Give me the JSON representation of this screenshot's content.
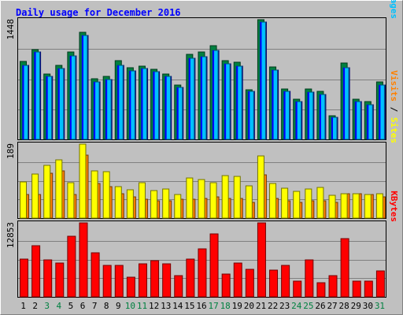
{
  "chart_data": {
    "type": "bar",
    "title": "Daily usage for December 2016",
    "categories": [
      "1",
      "2",
      "3",
      "4",
      "5",
      "6",
      "7",
      "8",
      "9",
      "10",
      "11",
      "12",
      "13",
      "14",
      "15",
      "16",
      "17",
      "18",
      "19",
      "20",
      "21",
      "22",
      "23",
      "24",
      "25",
      "26",
      "27",
      "28",
      "29",
      "30",
      "31"
    ],
    "weekend_days": [
      "3",
      "4",
      "10",
      "11",
      "17",
      "18",
      "24",
      "25",
      "31"
    ],
    "panels": [
      {
        "id": "top",
        "max_label": "1448",
        "ylim": [
          0,
          1448
        ],
        "right_labels": [
          {
            "text": "Hits",
            "color": "#008040"
          },
          {
            "text": " / ",
            "color": "#000000"
          },
          {
            "text": "Files",
            "color": "#0000ff"
          },
          {
            "text": " / ",
            "color": "#000000"
          },
          {
            "text": "Pages",
            "color": "#00c0ff"
          }
        ],
        "series": [
          {
            "name": "Hits",
            "color": "#008040",
            "values": [
              940,
              1090,
              790,
              900,
              1060,
              1300,
              730,
              760,
              950,
              870,
              890,
              850,
              790,
              660,
              1030,
              1060,
              1130,
              950,
              930,
              600,
              1448,
              880,
              610,
              490,
              610,
              580,
              290,
              920,
              490,
              460,
              700
            ]
          },
          {
            "name": "Files",
            "color": "#0000ff",
            "values": [
              900,
              1060,
              760,
              860,
              1010,
              1260,
              700,
              720,
              900,
              830,
              860,
              820,
              760,
              630,
              980,
              1000,
              1080,
              910,
              890,
              580,
              1420,
              840,
              580,
              460,
              570,
              540,
              270,
              870,
              460,
              420,
              660
            ]
          },
          {
            "name": "Pages",
            "color": "#00c0ff",
            "values": [
              900,
              1060,
              760,
              860,
              1010,
              1260,
              700,
              720,
              900,
              830,
              860,
              820,
              760,
              630,
              980,
              1000,
              1080,
              910,
              890,
              580,
              1420,
              840,
              580,
              460,
              570,
              540,
              270,
              870,
              460,
              420,
              660
            ]
          }
        ]
      },
      {
        "id": "middle",
        "max_label": "189",
        "ylim": [
          0,
          189
        ],
        "right_labels": [
          {
            "text": "Visits",
            "color": "#ff8000"
          },
          {
            "text": " / ",
            "color": "#000000"
          },
          {
            "text": "Sites",
            "color": "#ffff00"
          }
        ],
        "series": [
          {
            "name": "Visits",
            "color": "#ff8000",
            "values": [
              60,
              60,
              115,
              120,
              60,
              160,
              88,
              80,
              62,
              55,
              48,
              45,
              45,
              48,
              48,
              50,
              55,
              50,
              50,
              40,
              110,
              50,
              45,
              40,
              45,
              45,
              40,
              62,
              62,
              60,
              55
            ]
          },
          {
            "name": "Sites",
            "color": "#ffff00",
            "values": [
              92,
              112,
              135,
              148,
              90,
              189,
              120,
              118,
              80,
              72,
              90,
              70,
              75,
              60,
              102,
              98,
              90,
              108,
              106,
              82,
              158,
              88,
              76,
              68,
              75,
              78,
              58,
              62,
              62,
              60,
              63
            ]
          }
        ]
      },
      {
        "id": "bottom",
        "max_label": "12853",
        "ylim": [
          0,
          12853
        ],
        "right_labels": [
          {
            "text": "KBytes",
            "color": "#ff0000"
          }
        ],
        "series": [
          {
            "name": "KBytes",
            "color": "#ff0000",
            "values": [
              6500,
              8900,
              6400,
              5900,
              10500,
              12853,
              7700,
              5500,
              5500,
              3400,
              5800,
              6300,
              5700,
              3700,
              6500,
              8400,
              11000,
              3900,
              5900,
              4800,
              12853,
              4700,
              5500,
              2800,
              6400,
              2400,
              3700,
              10100,
              2700,
              2800,
              4500
            ]
          }
        ]
      }
    ]
  }
}
